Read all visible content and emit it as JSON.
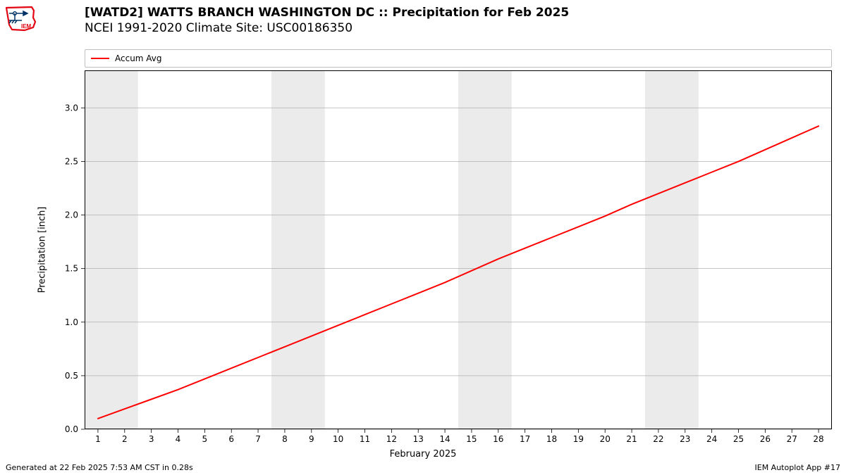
{
  "title_line1": "[WATD2] WATTS BRANCH WASHINGTON DC :: Precipitation for Feb 2025",
  "title_line2": "NCEI 1991-2020 Climate Site: USC00186350",
  "ylabel": "Precipitation [inch]",
  "xlabel": "February 2025",
  "footer_left": "Generated at 22 Feb 2025 7:53 AM CST in 0.28s",
  "footer_right": "IEM Autoplot App #17",
  "legend": {
    "label": "Accum Avg",
    "color": "#ff0000"
  },
  "chart": {
    "type": "line",
    "background_color": "#ffffff",
    "weekend_band_color": "#ebebeb",
    "grid_color": "#b0b0b0",
    "axis_color": "#000000",
    "xlim": [
      0.5,
      28.5
    ],
    "ylim": [
      0.0,
      3.35
    ],
    "yticks": [
      0.0,
      0.5,
      1.0,
      1.5,
      2.0,
      2.5,
      3.0
    ],
    "xticks": [
      1,
      2,
      3,
      4,
      5,
      6,
      7,
      8,
      9,
      10,
      11,
      12,
      13,
      14,
      15,
      16,
      17,
      18,
      19,
      20,
      21,
      22,
      23,
      24,
      25,
      26,
      27,
      28
    ],
    "weekend_bands": [
      [
        0.5,
        2.5
      ],
      [
        7.5,
        9.5
      ],
      [
        14.5,
        16.5
      ],
      [
        21.5,
        23.5
      ]
    ],
    "series": {
      "color": "#ff0000",
      "line_width": 2,
      "x": [
        1,
        2,
        3,
        4,
        5,
        6,
        7,
        8,
        9,
        10,
        11,
        12,
        13,
        14,
        15,
        16,
        17,
        18,
        19,
        20,
        21,
        22,
        23,
        24,
        25,
        26,
        27,
        28
      ],
      "y": [
        0.1,
        0.19,
        0.28,
        0.37,
        0.47,
        0.57,
        0.67,
        0.77,
        0.87,
        0.97,
        1.07,
        1.17,
        1.27,
        1.37,
        1.48,
        1.59,
        1.69,
        1.79,
        1.89,
        1.99,
        2.1,
        2.2,
        2.3,
        2.4,
        2.5,
        2.61,
        2.72,
        2.83
      ]
    },
    "tick_fontsize": 12,
    "label_fontsize": 13,
    "title_fontsize": 17
  },
  "logo": {
    "outline_color": "#e30613",
    "glyph_color": "#003366",
    "face_color": "#ffffff",
    "text": "IEM"
  }
}
